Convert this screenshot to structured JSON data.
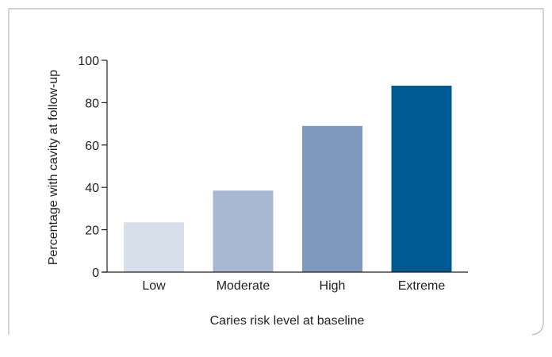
{
  "chart_data": {
    "type": "bar",
    "title": "",
    "xlabel": "Caries risk level at baseline",
    "ylabel": "Percentage with cavity at follow-up",
    "categories": [
      "Low",
      "Moderate",
      "High",
      "Extreme"
    ],
    "values": [
      23.5,
      38.5,
      69,
      88
    ],
    "ylim": [
      0,
      100
    ],
    "yticks": [
      "0",
      "20",
      "40",
      "60",
      "80",
      "100"
    ],
    "grid": false,
    "legend": "none",
    "bar_colors": [
      "#d7dfea",
      "#a9b8d2",
      "#7f98bd",
      "#005a92"
    ],
    "frame_color": "#b9b9b9",
    "axis_color": "#231f20",
    "text_color": "#231f20"
  }
}
